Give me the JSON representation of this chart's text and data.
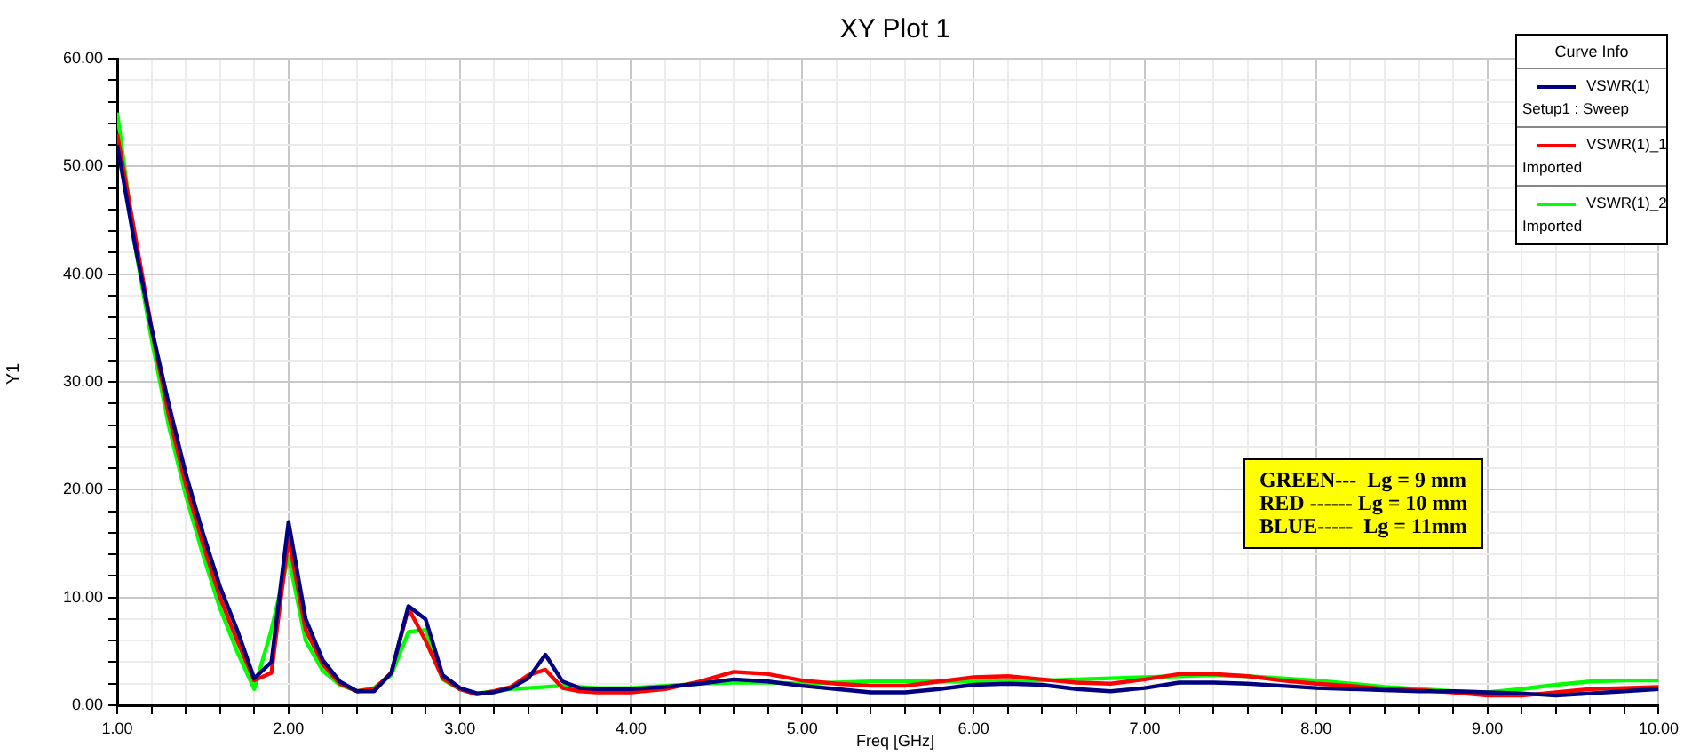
{
  "chart_data": {
    "type": "line",
    "title": "XY Plot 1",
    "xlabel": "Freq [GHz]",
    "ylabel": "Y1",
    "legend_title": "Curve Info",
    "legend": "top right",
    "grid": true,
    "marker": "none",
    "line_style": "solid",
    "x": [
      1.0,
      1.1,
      1.2,
      1.3,
      1.4,
      1.5,
      1.6,
      1.7,
      1.8,
      1.9,
      2.0,
      2.1,
      2.2,
      2.3,
      2.4,
      2.5,
      2.6,
      2.7,
      2.8,
      2.9,
      3.0,
      3.1,
      3.2,
      3.3,
      3.4,
      3.5,
      3.6,
      3.7,
      3.8,
      3.9,
      4.0,
      4.2,
      4.4,
      4.6,
      4.8,
      5.0,
      5.2,
      5.4,
      5.6,
      5.8,
      6.0,
      6.2,
      6.4,
      6.6,
      6.8,
      7.0,
      7.2,
      7.4,
      7.6,
      7.8,
      8.0,
      8.2,
      8.4,
      8.6,
      8.8,
      9.0,
      9.2,
      9.4,
      9.6,
      9.8,
      10.0
    ],
    "xlim": [
      1,
      10
    ],
    "ylim": [
      0,
      60
    ],
    "xticks": [
      {
        "value": 1,
        "label": "1.00"
      },
      {
        "value": 1.2,
        "label": null
      },
      {
        "value": 1.4,
        "label": null
      },
      {
        "value": 1.6,
        "label": null
      },
      {
        "value": 1.8,
        "label": null
      },
      {
        "value": 2,
        "label": "2.00"
      },
      {
        "value": 2.2,
        "label": null
      },
      {
        "value": 2.4,
        "label": null
      },
      {
        "value": 2.6,
        "label": null
      },
      {
        "value": 2.8,
        "label": null
      },
      {
        "value": 3,
        "label": "3.00"
      },
      {
        "value": 3.2,
        "label": null
      },
      {
        "value": 3.4,
        "label": null
      },
      {
        "value": 3.6,
        "label": null
      },
      {
        "value": 3.8,
        "label": null
      },
      {
        "value": 4,
        "label": "4.00"
      },
      {
        "value": 4.2,
        "label": null
      },
      {
        "value": 4.4,
        "label": null
      },
      {
        "value": 4.6,
        "label": null
      },
      {
        "value": 4.8,
        "label": null
      },
      {
        "value": 5,
        "label": "5.00"
      },
      {
        "value": 5.2,
        "label": null
      },
      {
        "value": 5.4,
        "label": null
      },
      {
        "value": 5.6,
        "label": null
      },
      {
        "value": 5.8,
        "label": null
      },
      {
        "value": 6,
        "label": "6.00"
      },
      {
        "value": 6.2,
        "label": null
      },
      {
        "value": 6.4,
        "label": null
      },
      {
        "value": 6.6,
        "label": null
      },
      {
        "value": 6.8,
        "label": null
      },
      {
        "value": 7,
        "label": "7.00"
      },
      {
        "value": 7.2,
        "label": null
      },
      {
        "value": 7.4,
        "label": null
      },
      {
        "value": 7.6,
        "label": null
      },
      {
        "value": 7.8,
        "label": null
      },
      {
        "value": 8,
        "label": "8.00"
      },
      {
        "value": 8.2,
        "label": null
      },
      {
        "value": 8.4,
        "label": null
      },
      {
        "value": 8.6,
        "label": null
      },
      {
        "value": 8.8,
        "label": null
      },
      {
        "value": 9,
        "label": "9.00"
      },
      {
        "value": 9.2,
        "label": null
      },
      {
        "value": 9.4,
        "label": null
      },
      {
        "value": 9.6,
        "label": null
      },
      {
        "value": 9.8,
        "label": null
      },
      {
        "value": 10,
        "label": "10.00"
      }
    ],
    "yticks": [
      {
        "value": 0,
        "label": "0.00"
      },
      {
        "value": 2,
        "label": null
      },
      {
        "value": 4,
        "label": null
      },
      {
        "value": 6,
        "label": null
      },
      {
        "value": 8,
        "label": null
      },
      {
        "value": 10,
        "label": "10.00"
      },
      {
        "value": 12,
        "label": null
      },
      {
        "value": 14,
        "label": null
      },
      {
        "value": 16,
        "label": null
      },
      {
        "value": 18,
        "label": null
      },
      {
        "value": 20,
        "label": "20.00"
      },
      {
        "value": 22,
        "label": null
      },
      {
        "value": 24,
        "label": null
      },
      {
        "value": 26,
        "label": null
      },
      {
        "value": 28,
        "label": null
      },
      {
        "value": 30,
        "label": "30.00"
      },
      {
        "value": 32,
        "label": null
      },
      {
        "value": 34,
        "label": null
      },
      {
        "value": 36,
        "label": null
      },
      {
        "value": 38,
        "label": null
      },
      {
        "value": 40,
        "label": "40.00"
      },
      {
        "value": 42,
        "label": null
      },
      {
        "value": 44,
        "label": null
      },
      {
        "value": 46,
        "label": null
      },
      {
        "value": 48,
        "label": null
      },
      {
        "value": 50,
        "label": "50.00"
      },
      {
        "value": 52,
        "label": null
      },
      {
        "value": 54,
        "label": null
      },
      {
        "value": 56,
        "label": null
      },
      {
        "value": 58,
        "label": null
      },
      {
        "value": 60,
        "label": "60.00"
      }
    ],
    "series": [
      {
        "name": "VSWR(1)\nSetup1 : Sweep",
        "color": "#000080",
        "values": [
          52,
          43,
          35,
          28,
          21.5,
          16,
          11,
          7,
          2.5,
          4,
          17,
          8,
          4.2,
          2.2,
          1.3,
          1.3,
          3,
          9.2,
          8,
          2.8,
          1.6,
          1.1,
          1.2,
          1.6,
          2.5,
          4.7,
          2.2,
          1.6,
          1.5,
          1.5,
          1.5,
          1.7,
          2.0,
          2.4,
          2.2,
          1.8,
          1.5,
          1.2,
          1.2,
          1.5,
          1.9,
          2.0,
          1.9,
          1.5,
          1.3,
          1.6,
          2.1,
          2.1,
          2.0,
          1.8,
          1.6,
          1.5,
          1.4,
          1.3,
          1.3,
          1.2,
          1.1,
          0.9,
          1.1,
          1.3,
          1.5
        ]
      },
      {
        "name": "VSWR(1)_1\nImported",
        "color": "#ff0000",
        "values": [
          53,
          44,
          35,
          27,
          20.5,
          15,
          10,
          6,
          2.3,
          3,
          15.5,
          7,
          3.8,
          2,
          1.3,
          1.5,
          3,
          9,
          6,
          2.5,
          1.5,
          1.0,
          1.3,
          1.7,
          2.8,
          3.3,
          1.6,
          1.3,
          1.2,
          1.2,
          1.2,
          1.5,
          2.2,
          3.1,
          2.9,
          2.3,
          2.0,
          1.8,
          1.8,
          2.2,
          2.6,
          2.7,
          2.4,
          2.1,
          2.0,
          2.4,
          2.9,
          2.9,
          2.7,
          2.3,
          2.0,
          1.8,
          1.5,
          1.4,
          1.2,
          0.9,
          0.9,
          1.2,
          1.5,
          1.6,
          1.7
        ]
      },
      {
        "name": "VSWR(1)_2\nImported",
        "color": "#00ff00",
        "values": [
          55,
          43,
          34,
          26,
          19.5,
          14,
          9,
          5,
          1.5,
          7,
          13.8,
          6,
          3.2,
          1.9,
          1.3,
          1.6,
          2.8,
          6.8,
          7,
          2.4,
          1.5,
          1.1,
          1.3,
          1.5,
          1.6,
          1.7,
          1.8,
          1.7,
          1.6,
          1.6,
          1.6,
          1.8,
          2.0,
          2.1,
          2.1,
          2.0,
          2.1,
          2.2,
          2.2,
          2.2,
          2.2,
          2.3,
          2.3,
          2.4,
          2.5,
          2.6,
          2.7,
          2.8,
          2.7,
          2.5,
          2.3,
          2.0,
          1.7,
          1.5,
          1.3,
          1.2,
          1.5,
          1.9,
          2.2,
          2.3,
          2.3
        ]
      }
    ],
    "annotations": [
      "GREEN---  Lg = 9 mm\nRED ------ Lg = 10 mm\nBLUE-----  Lg = 11mm"
    ]
  }
}
